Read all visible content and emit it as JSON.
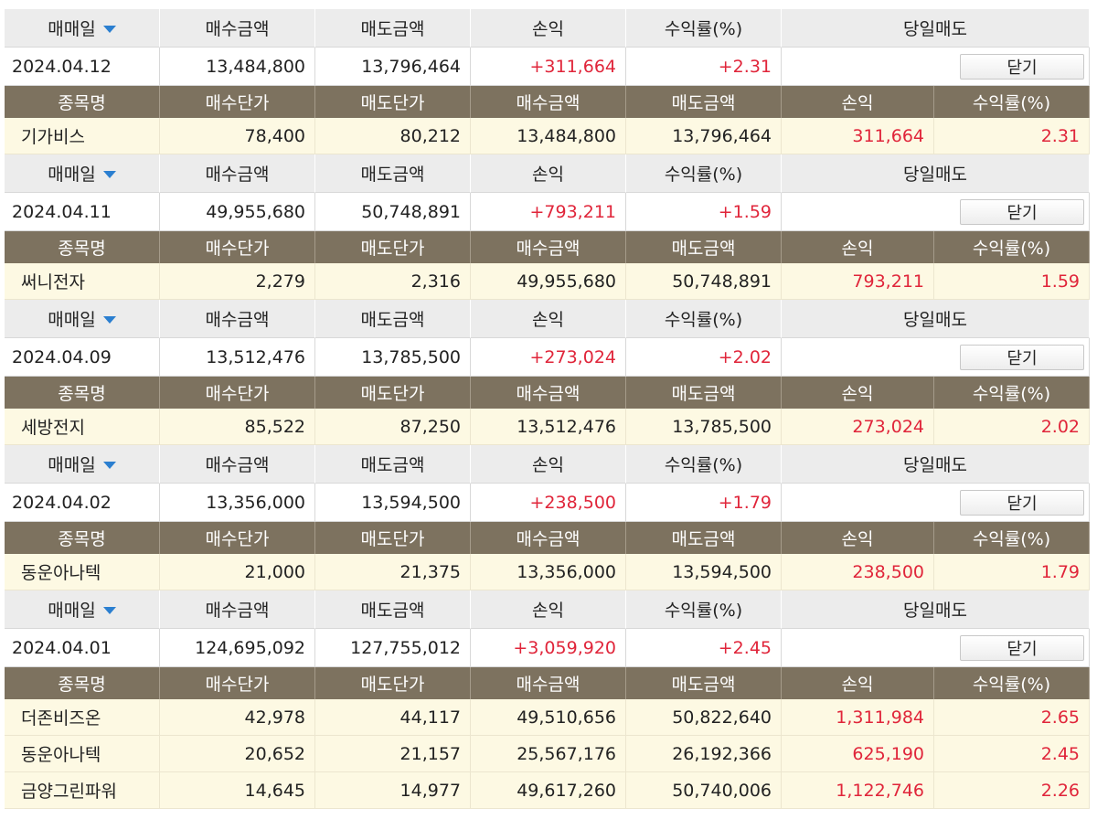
{
  "headers": {
    "date": "매매일",
    "buy_amount": "매수금액",
    "sell_amount": "매도금액",
    "pnl": "손익",
    "rate": "수익률(%)",
    "same_day": "당일매도"
  },
  "detail_headers": {
    "name": "종목명",
    "buy_price": "매수단가",
    "sell_price": "매도단가",
    "buy_amount": "매수금액",
    "sell_amount": "매도금액",
    "pnl": "손익",
    "rate": "수익률(%)"
  },
  "close_label": "닫기",
  "colors": {
    "header_bg": "#ececec",
    "detail_header_bg": "#7d725f",
    "detail_row_bg": "#fdf9e3",
    "profit": "#e0253a",
    "sort_arrow": "#2b7fd0"
  },
  "groups": [
    {
      "summary": {
        "date": "2024.04.12",
        "buy": "13,484,800",
        "sell": "13,796,464",
        "pnl": "+311,664",
        "rate": "+2.31"
      },
      "rows": [
        {
          "name": "기가비스",
          "buy_price": "78,400",
          "sell_price": "80,212",
          "buy_amount": "13,484,800",
          "sell_amount": "13,796,464",
          "pnl": "311,664",
          "rate": "2.31"
        }
      ]
    },
    {
      "summary": {
        "date": "2024.04.11",
        "buy": "49,955,680",
        "sell": "50,748,891",
        "pnl": "+793,211",
        "rate": "+1.59"
      },
      "rows": [
        {
          "name": "써니전자",
          "buy_price": "2,279",
          "sell_price": "2,316",
          "buy_amount": "49,955,680",
          "sell_amount": "50,748,891",
          "pnl": "793,211",
          "rate": "1.59"
        }
      ]
    },
    {
      "summary": {
        "date": "2024.04.09",
        "buy": "13,512,476",
        "sell": "13,785,500",
        "pnl": "+273,024",
        "rate": "+2.02"
      },
      "rows": [
        {
          "name": "세방전지",
          "buy_price": "85,522",
          "sell_price": "87,250",
          "buy_amount": "13,512,476",
          "sell_amount": "13,785,500",
          "pnl": "273,024",
          "rate": "2.02"
        }
      ]
    },
    {
      "summary": {
        "date": "2024.04.02",
        "buy": "13,356,000",
        "sell": "13,594,500",
        "pnl": "+238,500",
        "rate": "+1.79"
      },
      "rows": [
        {
          "name": "동운아나텍",
          "buy_price": "21,000",
          "sell_price": "21,375",
          "buy_amount": "13,356,000",
          "sell_amount": "13,594,500",
          "pnl": "238,500",
          "rate": "1.79"
        }
      ]
    },
    {
      "summary": {
        "date": "2024.04.01",
        "buy": "124,695,092",
        "sell": "127,755,012",
        "pnl": "+3,059,920",
        "rate": "+2.45"
      },
      "rows": [
        {
          "name": "더존비즈온",
          "buy_price": "42,978",
          "sell_price": "44,117",
          "buy_amount": "49,510,656",
          "sell_amount": "50,822,640",
          "pnl": "1,311,984",
          "rate": "2.65"
        },
        {
          "name": "동운아나텍",
          "buy_price": "20,652",
          "sell_price": "21,157",
          "buy_amount": "25,567,176",
          "sell_amount": "26,192,366",
          "pnl": "625,190",
          "rate": "2.45"
        },
        {
          "name": "금양그린파워",
          "buy_price": "14,645",
          "sell_price": "14,977",
          "buy_amount": "49,617,260",
          "sell_amount": "50,740,006",
          "pnl": "1,122,746",
          "rate": "2.26"
        }
      ]
    }
  ]
}
